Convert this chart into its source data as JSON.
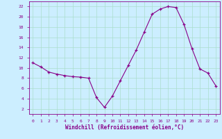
{
  "hours": [
    0,
    1,
    2,
    3,
    4,
    5,
    6,
    7,
    8,
    9,
    10,
    11,
    12,
    13,
    14,
    15,
    16,
    17,
    18,
    19,
    20,
    21,
    22,
    23
  ],
  "values": [
    11.0,
    10.2,
    9.2,
    8.8,
    8.5,
    8.3,
    8.2,
    8.0,
    4.2,
    2.3,
    4.5,
    7.5,
    10.5,
    13.5,
    17.0,
    20.5,
    21.5,
    22.0,
    21.8,
    18.5,
    13.8,
    9.8,
    9.0,
    6.5
  ],
  "bg_color": "#cceeff",
  "line_color": "#880088",
  "grid_color": "#aaddcc",
  "xlabel": "Windchill (Refroidissement éolien,°C)",
  "ylim": [
    1,
    23
  ],
  "xlim": [
    -0.5,
    23.5
  ],
  "yticks": [
    2,
    4,
    6,
    8,
    10,
    12,
    14,
    16,
    18,
    20,
    22
  ],
  "xticks": [
    0,
    1,
    2,
    3,
    4,
    5,
    6,
    7,
    8,
    9,
    10,
    11,
    12,
    13,
    14,
    15,
    16,
    17,
    18,
    19,
    20,
    21,
    22,
    23
  ]
}
